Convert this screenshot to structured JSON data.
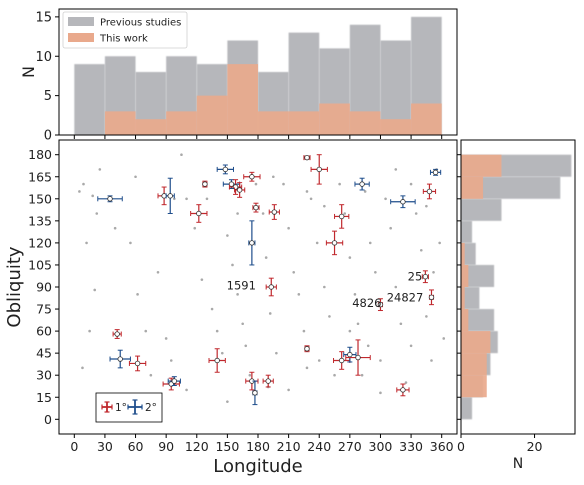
{
  "chart_data": [
    {
      "panel": "top-histogram",
      "type": "bar",
      "xlim": [
        -15,
        375
      ],
      "ylim": [
        0,
        16
      ],
      "yticks": [
        0,
        5,
        10,
        15
      ],
      "ylabel": "N",
      "bin_edges": [
        0,
        30,
        60,
        90,
        120,
        150,
        180,
        210,
        240,
        270,
        300,
        330,
        360
      ],
      "legend": {
        "placement": "top-left",
        "entries": [
          "Previous studies",
          "This work"
        ]
      },
      "series": [
        {
          "name": "Previous studies",
          "color": "#b6b7bb",
          "values": [
            9,
            10,
            8,
            10,
            9,
            12,
            8,
            13,
            11,
            14,
            12,
            15
          ]
        },
        {
          "name": "This work",
          "color": "#e9a98c",
          "values": [
            0,
            3,
            2,
            3,
            5,
            9,
            3,
            3,
            4,
            3,
            2,
            4
          ]
        }
      ]
    },
    {
      "panel": "right-histogram",
      "type": "bar",
      "orientation": "horizontal",
      "xlim": [
        0,
        31
      ],
      "xticks": [
        0,
        20
      ],
      "xlabel": "N",
      "bin_edges": [
        0,
        15,
        30,
        45,
        60,
        75,
        90,
        105,
        120,
        135,
        150,
        165,
        180
      ],
      "series": [
        {
          "name": "Previous studies",
          "color": "#b6b7bb",
          "values": [
            3,
            6,
            8,
            10,
            9,
            5,
            9,
            4,
            3,
            11,
            27,
            30,
            8
          ]
        },
        {
          "name": "This work",
          "color": "#e9a98c",
          "values": [
            0,
            7,
            7,
            8,
            2,
            1,
            2,
            1,
            0,
            0,
            6,
            11,
            4
          ]
        }
      ]
    },
    {
      "panel": "main-scatter",
      "type": "scatter",
      "xlabel": "Longitude",
      "ylabel": "Obliquity",
      "xlim": [
        -15,
        375
      ],
      "ylim": [
        -10,
        190
      ],
      "xticks": [
        0,
        30,
        60,
        90,
        120,
        150,
        180,
        210,
        240,
        270,
        300,
        330,
        360
      ],
      "yticks": [
        0,
        15,
        30,
        45,
        60,
        75,
        90,
        105,
        120,
        135,
        150,
        165,
        180
      ],
      "annotations": [
        {
          "text": "1591",
          "x": 178,
          "y": 91
        },
        {
          "text": "25",
          "x": 341,
          "y": 97
        },
        {
          "text": "4826",
          "x": 301,
          "y": 79
        },
        {
          "text": "24827",
          "x": 342,
          "y": 83
        }
      ],
      "legend": {
        "placement": "bottom-left",
        "entries": [
          "1°",
          "2°"
        ],
        "colors": [
          "#c0282d",
          "#1f4e8c"
        ]
      },
      "background_points": [
        [
          5,
          155
        ],
        [
          9,
          160
        ],
        [
          18,
          152
        ],
        [
          25,
          170
        ],
        [
          22,
          140
        ],
        [
          12,
          120
        ],
        [
          8,
          35
        ],
        [
          40,
          130
        ],
        [
          55,
          120
        ],
        [
          62,
          85
        ],
        [
          70,
          60
        ],
        [
          82,
          100
        ],
        [
          90,
          55
        ],
        [
          95,
          40
        ],
        [
          105,
          180
        ],
        [
          110,
          150
        ],
        [
          118,
          130
        ],
        [
          125,
          95
        ],
        [
          135,
          75
        ],
        [
          140,
          60
        ],
        [
          145,
          45
        ],
        [
          150,
          125
        ],
        [
          155,
          105
        ],
        [
          160,
          85
        ],
        [
          165,
          65
        ],
        [
          168,
          50
        ],
        [
          172,
          30
        ],
        [
          178,
          160
        ],
        [
          185,
          140
        ],
        [
          188,
          110
        ],
        [
          192,
          72
        ],
        [
          198,
          45
        ],
        [
          205,
          160
        ],
        [
          210,
          130
        ],
        [
          215,
          100
        ],
        [
          220,
          85
        ],
        [
          225,
          60
        ],
        [
          228,
          35
        ],
        [
          232,
          150
        ],
        [
          238,
          120
        ],
        [
          245,
          90
        ],
        [
          250,
          70
        ],
        [
          255,
          30
        ],
        [
          260,
          160
        ],
        [
          265,
          140
        ],
        [
          270,
          110
        ],
        [
          275,
          85
        ],
        [
          278,
          65
        ],
        [
          282,
          30
        ],
        [
          285,
          155
        ],
        [
          290,
          120
        ],
        [
          295,
          100
        ],
        [
          300,
          40
        ],
        [
          305,
          150
        ],
        [
          310,
          130
        ],
        [
          315,
          90
        ],
        [
          320,
          65
        ],
        [
          325,
          25
        ],
        [
          330,
          160
        ],
        [
          335,
          140
        ],
        [
          340,
          115
        ],
        [
          345,
          70
        ],
        [
          350,
          40
        ],
        [
          355,
          170
        ],
        [
          358,
          120
        ],
        [
          362,
          55
        ],
        [
          228,
          155
        ],
        [
          245,
          145
        ],
        [
          190,
          22
        ],
        [
          210,
          20
        ],
        [
          150,
          12
        ],
        [
          300,
          18
        ],
        [
          98,
          150
        ],
        [
          110,
          20
        ],
        [
          20,
          88
        ],
        [
          270,
          60
        ],
        [
          130,
          150
        ],
        [
          195,
          165
        ],
        [
          255,
          120
        ],
        [
          315,
          170
        ],
        [
          345,
          145
        ],
        [
          288,
          50
        ],
        [
          160,
          140
        ],
        [
          240,
          40
        ],
        [
          75,
          30
        ],
        [
          15,
          60
        ],
        [
          35,
          150
        ],
        [
          60,
          165
        ],
        [
          330,
          50
        ],
        [
          352,
          100
        ]
      ],
      "points": [
        {
          "x": 35,
          "y": 150,
          "ex": 12,
          "ey": 2,
          "color": "#1f4e8c"
        },
        {
          "x": 42,
          "y": 58,
          "ex": 4,
          "ey": 3,
          "color": "#c0282d"
        },
        {
          "x": 45,
          "y": 41,
          "ex": 10,
          "ey": 6,
          "color": "#1f4e8c"
        },
        {
          "x": 62,
          "y": 38,
          "ex": 8,
          "ey": 5,
          "color": "#c0282d"
        },
        {
          "x": 88,
          "y": 152,
          "ex": 6,
          "ey": 6,
          "color": "#c0282d"
        },
        {
          "x": 94,
          "y": 152,
          "ex": 4,
          "ey": 12,
          "color": "#1f4e8c"
        },
        {
          "x": 95,
          "y": 24,
          "ex": 8,
          "ey": 4,
          "color": "#c0282d"
        },
        {
          "x": 98,
          "y": 26,
          "ex": 6,
          "ey": 3,
          "color": "#1f4e8c"
        },
        {
          "x": 122,
          "y": 140,
          "ex": 8,
          "ey": 6,
          "color": "#c0282d"
        },
        {
          "x": 128,
          "y": 160,
          "ex": 2,
          "ey": 2,
          "color": "#c0282d"
        },
        {
          "x": 140,
          "y": 40,
          "ex": 8,
          "ey": 8,
          "color": "#c0282d"
        },
        {
          "x": 148,
          "y": 170,
          "ex": 8,
          "ey": 3,
          "color": "#1f4e8c"
        },
        {
          "x": 154,
          "y": 160,
          "ex": 8,
          "ey": 3,
          "color": "#1f4e8c"
        },
        {
          "x": 158,
          "y": 158,
          "ex": 6,
          "ey": 5,
          "color": "#c0282d"
        },
        {
          "x": 162,
          "y": 156,
          "ex": 5,
          "ey": 5,
          "color": "#c0282d"
        },
        {
          "x": 174,
          "y": 165,
          "ex": 8,
          "ey": 3,
          "color": "#c0282d"
        },
        {
          "x": 174,
          "y": 120,
          "ex": 3,
          "ey": 15,
          "color": "#1f4e8c"
        },
        {
          "x": 178,
          "y": 144,
          "ex": 3,
          "ey": 3,
          "color": "#c0282d"
        },
        {
          "x": 174,
          "y": 26,
          "ex": 6,
          "ey": 6,
          "color": "#c0282d"
        },
        {
          "x": 177,
          "y": 18,
          "ex": 2,
          "ey": 8,
          "color": "#1f4e8c"
        },
        {
          "x": 190,
          "y": 26,
          "ex": 5,
          "ey": 4,
          "color": "#c0282d"
        },
        {
          "x": 193,
          "y": 90,
          "ex": 5,
          "ey": 6,
          "color": "#c0282d"
        },
        {
          "x": 196,
          "y": 141,
          "ex": 5,
          "ey": 5,
          "color": "#c0282d"
        },
        {
          "x": 228,
          "y": 178,
          "ex": 3,
          "ey": 1,
          "color": "#c0282d"
        },
        {
          "x": 228,
          "y": 48,
          "ex": 2,
          "ey": 2,
          "color": "#c0282d"
        },
        {
          "x": 240,
          "y": 170,
          "ex": 8,
          "ey": 10,
          "color": "#c0282d"
        },
        {
          "x": 255,
          "y": 120,
          "ex": 8,
          "ey": 8,
          "color": "#c0282d"
        },
        {
          "x": 262,
          "y": 138,
          "ex": 7,
          "ey": 8,
          "color": "#c0282d"
        },
        {
          "x": 262,
          "y": 40,
          "ex": 8,
          "ey": 6,
          "color": "#c0282d"
        },
        {
          "x": 270,
          "y": 44,
          "ex": 6,
          "ey": 5,
          "color": "#1f4e8c"
        },
        {
          "x": 278,
          "y": 42,
          "ex": 12,
          "ey": 12,
          "color": "#c0282d"
        },
        {
          "x": 282,
          "y": 160,
          "ex": 7,
          "ey": 4,
          "color": "#1f4e8c"
        },
        {
          "x": 300,
          "y": 78,
          "ex": 2,
          "ey": 4,
          "color": "#c0282d"
        },
        {
          "x": 322,
          "y": 148,
          "ex": 12,
          "ey": 4,
          "color": "#1f4e8c"
        },
        {
          "x": 322,
          "y": 20,
          "ex": 6,
          "ey": 4,
          "color": "#c0282d"
        },
        {
          "x": 344,
          "y": 97,
          "ex": 3,
          "ey": 4,
          "color": "#c0282d"
        },
        {
          "x": 348,
          "y": 155,
          "ex": 6,
          "ey": 5,
          "color": "#c0282d"
        },
        {
          "x": 350,
          "y": 83,
          "ex": 2,
          "ey": 5,
          "color": "#c0282d"
        },
        {
          "x": 354,
          "y": 168,
          "ex": 5,
          "ey": 2,
          "color": "#1f4e8c"
        }
      ]
    }
  ]
}
